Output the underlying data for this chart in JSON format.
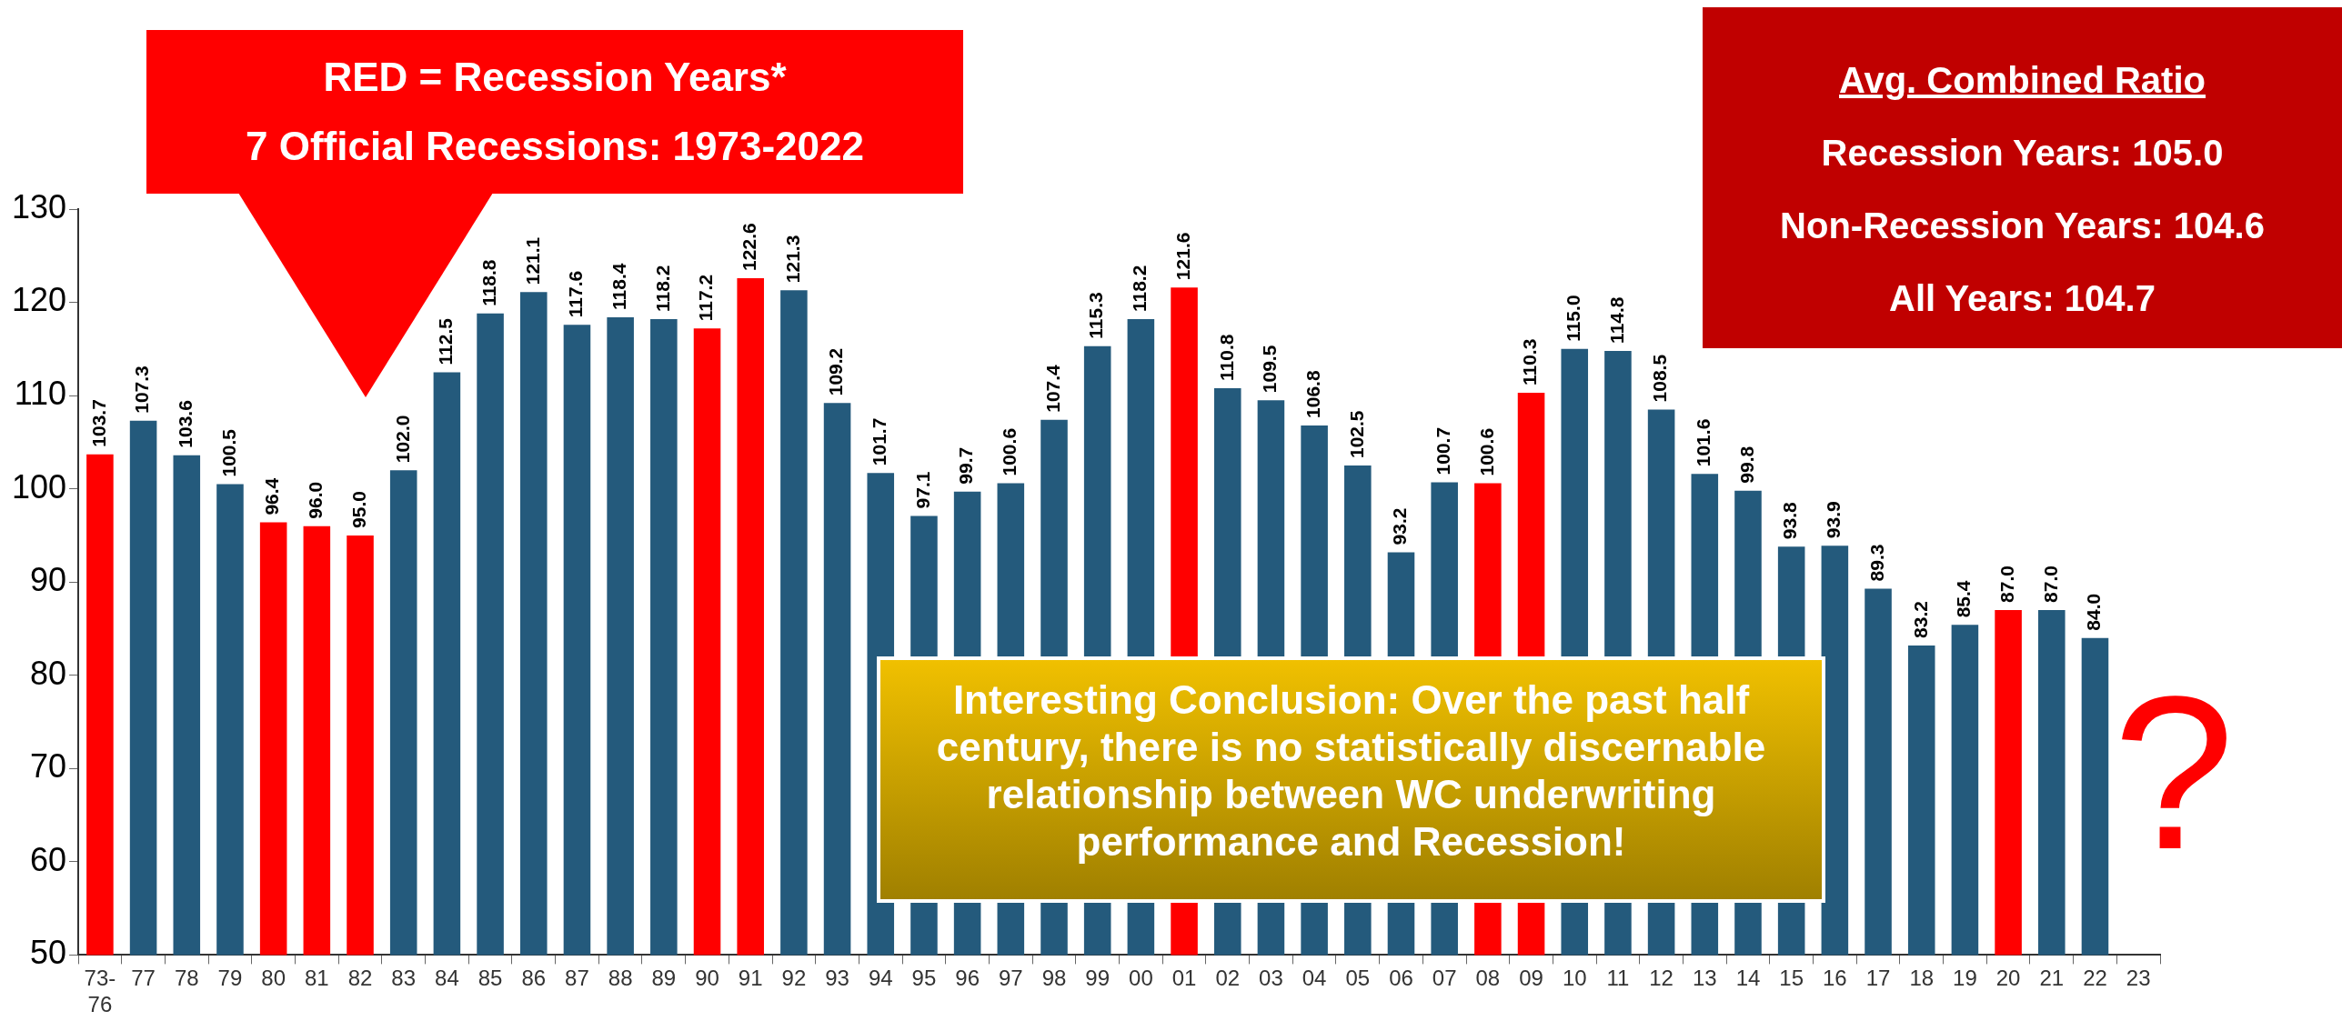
{
  "chart_data": {
    "type": "bar",
    "categories": [
      "73-76",
      "77",
      "78",
      "79",
      "80",
      "81",
      "82",
      "83",
      "84",
      "85",
      "86",
      "87",
      "88",
      "89",
      "90",
      "91",
      "92",
      "93",
      "94",
      "95",
      "96",
      "97",
      "98",
      "99",
      "00",
      "01",
      "02",
      "03",
      "04",
      "05",
      "06",
      "07",
      "08",
      "09",
      "10",
      "11",
      "12",
      "13",
      "14",
      "15",
      "16",
      "17",
      "18",
      "19",
      "20",
      "21",
      "22",
      "23"
    ],
    "values": [
      103.7,
      107.3,
      103.6,
      100.5,
      96.4,
      96.0,
      95.0,
      102.0,
      112.5,
      118.8,
      121.1,
      117.6,
      118.4,
      118.2,
      117.2,
      122.6,
      121.3,
      109.2,
      101.7,
      97.1,
      99.7,
      100.6,
      107.4,
      115.3,
      118.2,
      121.6,
      110.8,
      109.5,
      106.8,
      102.5,
      93.2,
      100.7,
      100.6,
      110.3,
      115.0,
      114.8,
      108.5,
      101.6,
      99.8,
      93.8,
      93.9,
      89.3,
      83.2,
      85.4,
      87.0,
      87.0,
      84.0,
      null
    ],
    "value_labels": [
      "103.7",
      "107.3",
      "103.6",
      "100.5",
      "96.4",
      "96.0",
      "95.0",
      "102.0",
      "112.5",
      "118.8",
      "121.1",
      "117.6",
      "118.4",
      "118.2",
      "117.2",
      "122.6",
      "121.3",
      "109.2",
      "101.7",
      "97.1",
      "99.7",
      "100.6",
      "107.4",
      "115.3",
      "118.2",
      "121.6",
      "110.8",
      "109.5",
      "106.8",
      "102.5",
      "93.2",
      "100.7",
      "100.6",
      "110.3",
      "115.0",
      "114.8",
      "108.5",
      "101.6",
      "99.8",
      "93.8",
      "93.9",
      "89.3",
      "83.2",
      "85.4",
      "87.0",
      "87.0",
      "84.0",
      null
    ],
    "colors": [
      "#ff0000",
      "#245a7c",
      "#245a7c",
      "#245a7c",
      "#ff0000",
      "#ff0000",
      "#ff0000",
      "#245a7c",
      "#245a7c",
      "#245a7c",
      "#245a7c",
      "#245a7c",
      "#245a7c",
      "#245a7c",
      "#ff0000",
      "#ff0000",
      "#245a7c",
      "#245a7c",
      "#245a7c",
      "#245a7c",
      "#245a7c",
      "#245a7c",
      "#245a7c",
      "#245a7c",
      "#245a7c",
      "#ff0000",
      "#245a7c",
      "#245a7c",
      "#245a7c",
      "#245a7c",
      "#245a7c",
      "#245a7c",
      "#ff0000",
      "#ff0000",
      "#245a7c",
      "#245a7c",
      "#245a7c",
      "#245a7c",
      "#245a7c",
      "#245a7c",
      "#245a7c",
      "#245a7c",
      "#245a7c",
      "#245a7c",
      "#ff0000",
      "#245a7c",
      "#245a7c",
      "#245a7c"
    ],
    "ylim": [
      50,
      130
    ],
    "yticks": [
      50,
      60,
      70,
      80,
      90,
      100,
      110,
      120,
      130
    ],
    "grid": false,
    "legend": false,
    "annotations": [
      "RED = Recession Years*",
      "7 Official Recessions: 1973-2022",
      "Avg. Combined Ratio",
      "Recession Years: 105.0",
      "Non-Recession Years: 104.6",
      "All Years: 104.7",
      "Interesting Conclusion: Over the past half century, there is no statistically discernable relationship between WC underwriting performance and Recession!",
      "?"
    ]
  }
}
